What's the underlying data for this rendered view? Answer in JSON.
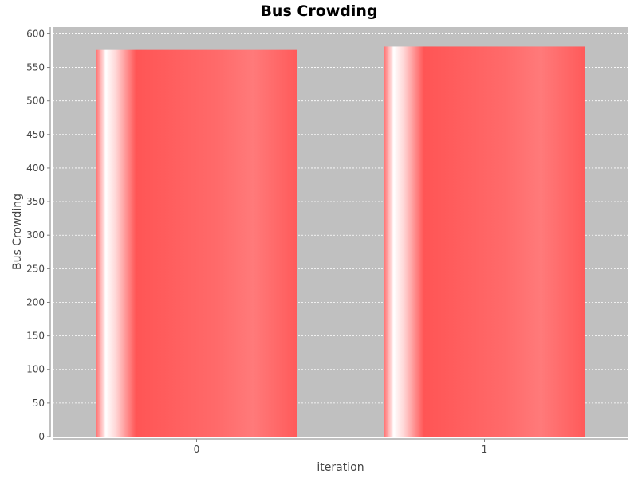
{
  "chart_data": {
    "type": "bar",
    "title": "Bus Crowding",
    "xlabel": "iteration",
    "ylabel": "Bus Crowding",
    "categories": [
      "0",
      "1"
    ],
    "series": [
      {
        "values": [
          576,
          581
        ]
      }
    ],
    "ylim": [
      0,
      610
    ],
    "yticks": [
      0,
      50,
      100,
      150,
      200,
      250,
      300,
      350,
      400,
      450,
      500,
      550,
      600
    ],
    "grid": true,
    "legend": "none",
    "colors": {
      "bar": "#ff5555",
      "plot_background": "#c0c0c0",
      "grid": "#ffffff"
    }
  }
}
